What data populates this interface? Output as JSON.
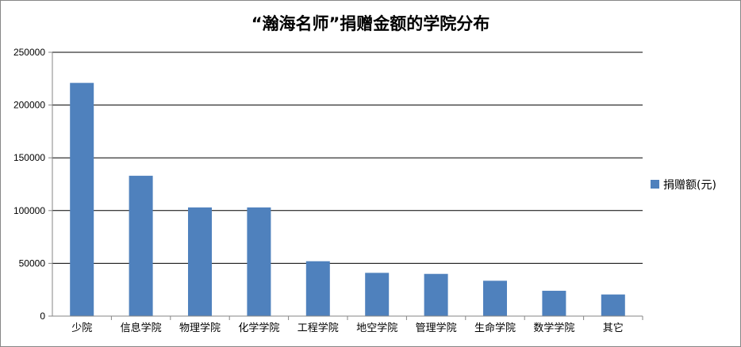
{
  "chart_data": {
    "type": "bar",
    "title": "“瀚海名师”捐赠金额的学院分布",
    "categories": [
      "少院",
      "信息学院",
      "物理学院",
      "化学学院",
      "工程学院",
      "地空学院",
      "管理学院",
      "生命学院",
      "数学学院",
      "其它"
    ],
    "series": [
      {
        "name": "捐赠额(元)",
        "values": [
          221000,
          133000,
          103000,
          103000,
          52000,
          41000,
          40000,
          33500,
          24000,
          20500
        ]
      }
    ],
    "ylim": [
      0,
      250000
    ],
    "yticks": [
      0,
      50000,
      100000,
      150000,
      200000,
      250000
    ],
    "ytick_labels": [
      "0",
      "50000",
      "100000",
      "150000",
      "200000",
      "250000"
    ],
    "grid": true,
    "legend_position": "right",
    "colors": {
      "bar": "#4F81BD",
      "grid": "#000000",
      "axis": "#868686"
    }
  }
}
